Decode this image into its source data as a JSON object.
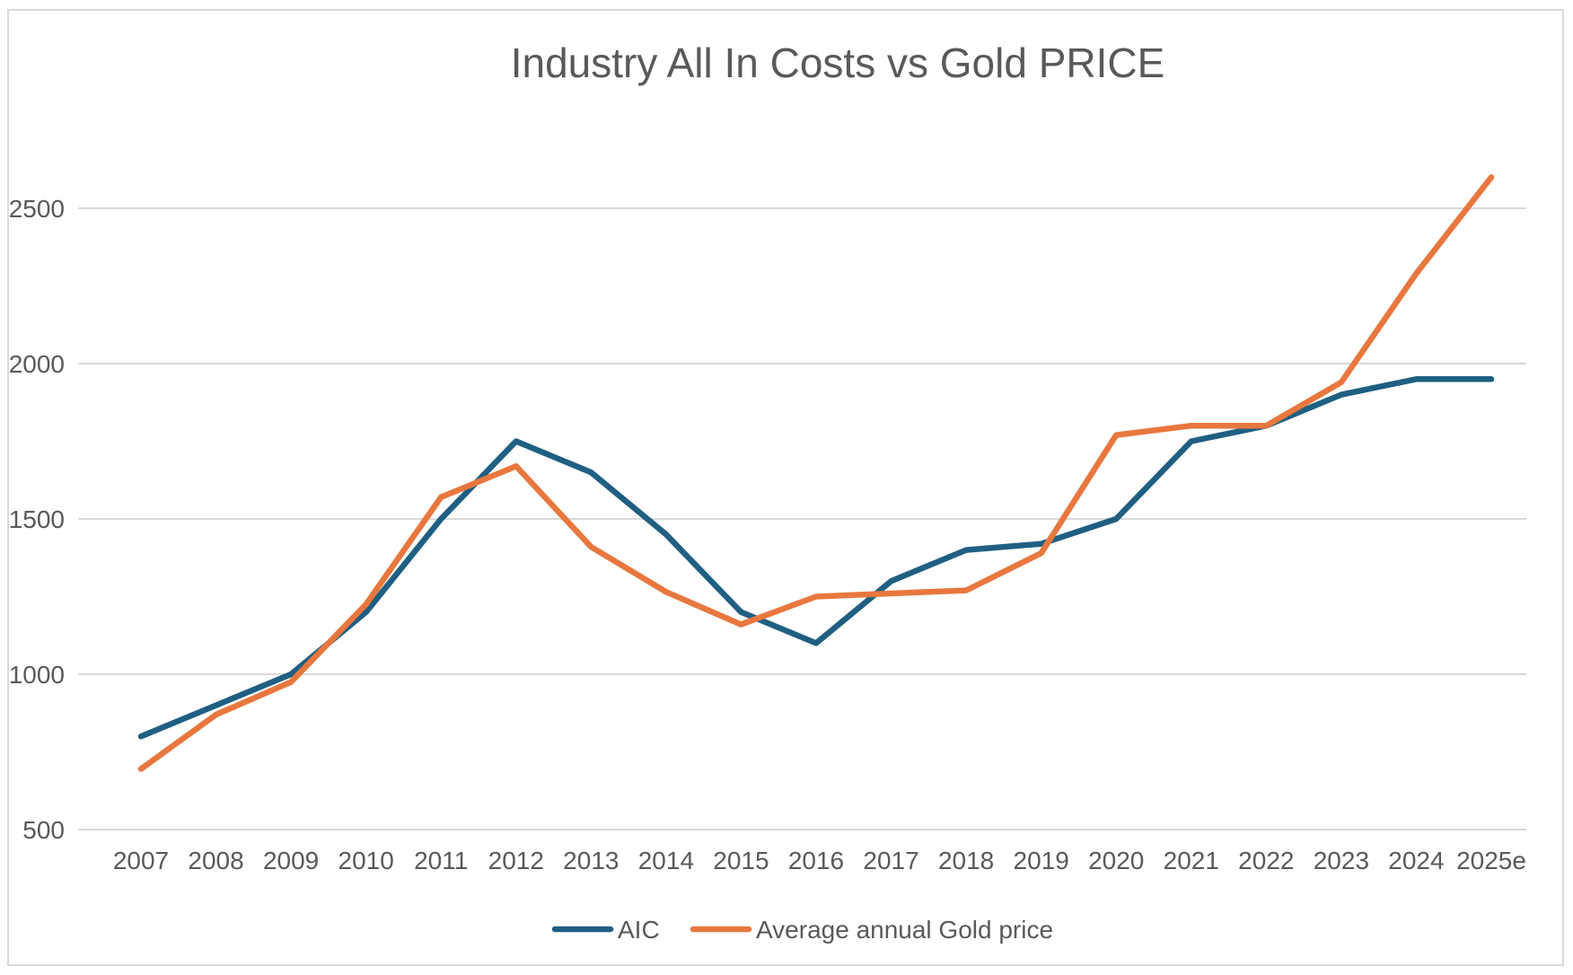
{
  "chart_data": {
    "type": "line",
    "title": "Industry All In Costs vs Gold PRICE",
    "xlabel": "",
    "ylabel": "",
    "categories": [
      "2007",
      "2008",
      "2009",
      "2010",
      "2011",
      "2012",
      "2013",
      "2014",
      "2015",
      "2016",
      "2017",
      "2018",
      "2019",
      "2020",
      "2021",
      "2022",
      "2023",
      "2024",
      "2025e"
    ],
    "ylim": [
      500,
      2700
    ],
    "yticks": [
      500,
      1000,
      1500,
      2000,
      2500
    ],
    "grid": true,
    "legend_position": "bottom",
    "series": [
      {
        "name": "AIC",
        "color": "#1f5f82",
        "values": [
          800,
          900,
          1000,
          1200,
          1500,
          1750,
          1650,
          1450,
          1200,
          1100,
          1300,
          1400,
          1420,
          1500,
          1750,
          1800,
          1900,
          1950,
          1950
        ]
      },
      {
        "name": "Average annual Gold price",
        "color": "#e8773e",
        "values": [
          695,
          870,
          975,
          1225,
          1570,
          1670,
          1410,
          1265,
          1160,
          1250,
          1260,
          1270,
          1390,
          1770,
          1800,
          1800,
          1940,
          2290,
          2600
        ]
      }
    ]
  }
}
